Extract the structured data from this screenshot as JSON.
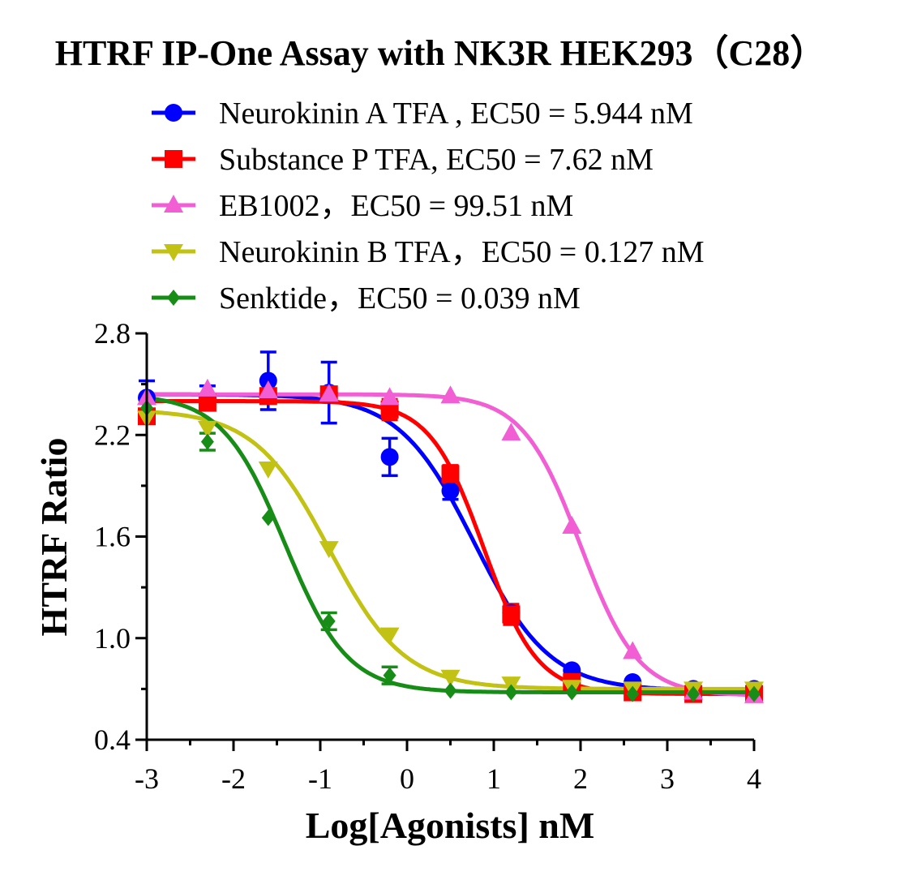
{
  "chart_data": {
    "type": "scatter",
    "title": "HTRF IP-One Assay with NK3R HEK293（C28）",
    "xlabel": "Log[Agonists] nM",
    "ylabel": "HTRF Ratio",
    "xlim": [
      -3,
      4
    ],
    "ylim": [
      0.4,
      2.8
    ],
    "x_ticks": [
      "-3",
      "-2",
      "-1",
      "0",
      "1",
      "2",
      "3",
      "4"
    ],
    "y_ticks": [
      "0.4",
      "1.0",
      "1.6",
      "2.2",
      "2.8"
    ],
    "legend_position": "top",
    "x": [
      -3.0,
      -2.3,
      -1.6,
      -0.9,
      -0.2,
      0.5,
      1.2,
      1.9,
      2.6,
      3.3,
      4.0
    ],
    "series": [
      {
        "name": "Neurokinin A TFA , EC50 = 5.944 nM",
        "color": "#0000ff",
        "marker": "circle",
        "values": [
          2.42,
          2.42,
          2.52,
          2.45,
          2.07,
          1.87,
          1.15,
          0.81,
          0.74,
          0.7,
          0.7
        ],
        "errors": [
          0.1,
          0.07,
          0.17,
          0.18,
          0.11,
          0.05,
          0.04,
          0.02,
          0.02,
          0.02,
          0.02
        ],
        "fit": {
          "top": 2.44,
          "bottom": 0.69,
          "logec50": 0.774,
          "hill": -1.0
        }
      },
      {
        "name": "Substance P TFA, EC50 = 7.62 nM",
        "color": "#ff0000",
        "marker": "square",
        "values": [
          2.31,
          2.39,
          2.43,
          2.44,
          2.35,
          1.97,
          1.14,
          0.74,
          0.68,
          0.67,
          0.67
        ],
        "errors": [
          0.03,
          0.04,
          0.03,
          0.03,
          0.06,
          0.05,
          0.06,
          0.02,
          0.02,
          0.02,
          0.03
        ],
        "fit": {
          "top": 2.4,
          "bottom": 0.67,
          "logec50": 0.882,
          "hill": -1.4
        }
      },
      {
        "name": "EB1002，EC50 = 99.51 nM",
        "color": "#f25ed3",
        "marker": "triangle-up",
        "values": [
          2.42,
          2.47,
          2.46,
          2.44,
          2.42,
          2.43,
          2.21,
          1.66,
          0.92,
          0.68,
          0.66
        ],
        "errors": [
          0.03,
          0.03,
          0.02,
          0.02,
          0.02,
          0.02,
          0.02,
          0.02,
          0.02,
          0.02,
          0.02
        ],
        "fit": {
          "top": 2.44,
          "bottom": 0.66,
          "logec50": 1.998,
          "hill": -1.3
        }
      },
      {
        "name": "Neurokinin B TFA，EC50 = 0.127 nM",
        "color": "#c2c214",
        "marker": "triangle-down",
        "values": [
          2.3,
          2.24,
          2.0,
          1.53,
          1.02,
          0.77,
          0.73,
          0.71,
          0.7,
          0.7,
          0.7
        ],
        "errors": [
          0.02,
          0.02,
          0.02,
          0.02,
          0.02,
          0.02,
          0.02,
          0.02,
          0.02,
          0.02,
          0.02
        ],
        "fit": {
          "top": 2.35,
          "bottom": 0.7,
          "logec50": -0.896,
          "hill": -1.0
        }
      },
      {
        "name": "Senktide，EC50 = 0.039 nM",
        "color": "#178c17",
        "marker": "diamond",
        "values": [
          2.36,
          2.16,
          1.71,
          1.1,
          0.78,
          0.69,
          0.68,
          0.68,
          0.67,
          0.67,
          0.67
        ],
        "errors": [
          0.02,
          0.05,
          0.02,
          0.05,
          0.05,
          0.02,
          0.02,
          0.02,
          0.02,
          0.02,
          0.02
        ],
        "fit": {
          "top": 2.44,
          "bottom": 0.68,
          "logec50": -1.409,
          "hill": -1.2
        }
      }
    ]
  }
}
